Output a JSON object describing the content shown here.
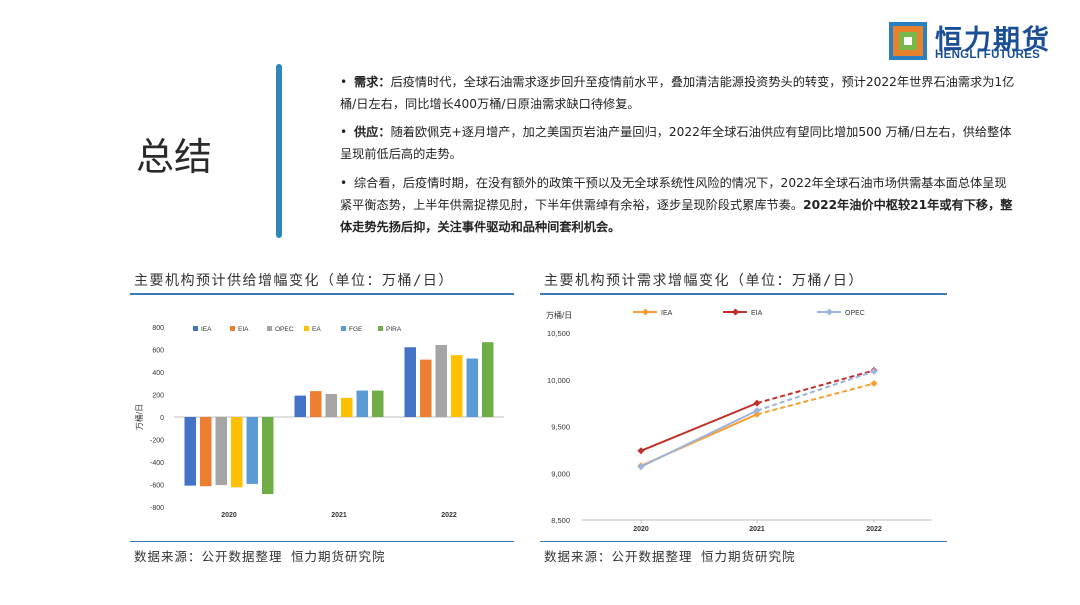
{
  "logo": {
    "cn": "恒力期货",
    "en": "HENGLI FUTURES"
  },
  "title": "总结",
  "bullets": [
    {
      "dot": "•",
      "label": "需求：",
      "text": "后疫情时代，全球石油需求逐步回升至疫情前水平，叠加清洁能源投资势头的转变，预计2022年世界石油需求为1亿桶/日左右，同比增长400万桶/日原油需求缺口待修复。",
      "bold": ""
    },
    {
      "dot": "•",
      "label": "供应：",
      "text": "随着欧佩克+逐月增产，加之美国页岩油产量回归，2022年全球石油供应有望同比增加500 万桶/日左右，供给整体呈现前低后高的走势。",
      "bold": ""
    },
    {
      "dot": "•",
      "label": "",
      "text": "综合看，后疫情时期，在没有额外的政策干预以及无全球系统性风险的情况下，2022年全球石油市场供需基本面总体呈现紧平衡态势，上半年供需捉襟见肘，下半年供需绰有余裕，逐步呈现阶段式累库节奏。",
      "bold": "2022年油价中枢较21年或有下移，整体走势先扬后抑，关注事件驱动和品种间套利机会。"
    }
  ],
  "left_panel": {
    "title": "主要机构预计供给增幅变化（单位：万桶/日）",
    "source": "数据来源：公开数据整理 恒力期货研究院"
  },
  "right_panel": {
    "title": "主要机构预计需求增幅变化（单位：万桶/日）",
    "source": "数据来源：公开数据整理 恒力期货研究院"
  },
  "chart_data": [
    {
      "type": "bar",
      "title": "主要机构预计供给增幅变化（单位：万桶/日）",
      "ylabel": "万桶/日",
      "categories": [
        "2020",
        "2021",
        "2022"
      ],
      "ylim": [
        -800,
        800
      ],
      "yticks": [
        800,
        600,
        400,
        200,
        0,
        -200,
        -400,
        -600,
        -800
      ],
      "legend_position": "top",
      "series": [
        {
          "name": "IEA",
          "color": "#4472c4",
          "values": [
            -610,
            190,
            620
          ]
        },
        {
          "name": "EIA",
          "color": "#ed7d31",
          "values": [
            -615,
            230,
            510
          ]
        },
        {
          "name": "OPEC",
          "color": "#a5a5a5",
          "values": [
            -605,
            205,
            640
          ]
        },
        {
          "name": "EA",
          "color": "#ffc000",
          "values": [
            -625,
            170,
            550
          ]
        },
        {
          "name": "FGE",
          "color": "#5b9bd5",
          "values": [
            -595,
            235,
            520
          ]
        },
        {
          "name": "PIRA",
          "color": "#70ad47",
          "values": [
            -685,
            235,
            665
          ]
        }
      ]
    },
    {
      "type": "line",
      "title": "主要机构预计需求增幅变化（单位：万桶/日）",
      "ylabel": "万桶/日",
      "x": [
        "2020",
        "2021",
        "2022"
      ],
      "ylim": [
        8500,
        10500
      ],
      "yticks": [
        "10,500",
        "10,000",
        "9,500",
        "9,000",
        "8,500"
      ],
      "ytick_values": [
        10500,
        10000,
        9500,
        9000,
        8500
      ],
      "legend_position": "top",
      "series": [
        {
          "name": "IEA",
          "color": "#f5a030",
          "values": [
            9080,
            9630,
            9960
          ]
        },
        {
          "name": "EIA",
          "color": "#c0302a",
          "values": [
            9240,
            9750,
            10100
          ]
        },
        {
          "name": "OPEC",
          "color": "#9fb3dc",
          "values": [
            9070,
            9670,
            10090
          ]
        }
      ]
    }
  ]
}
